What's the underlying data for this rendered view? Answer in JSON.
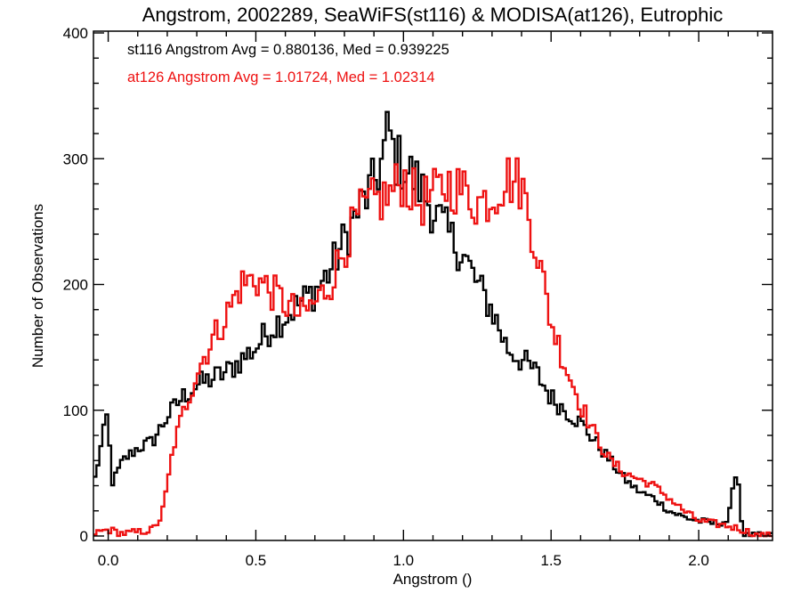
{
  "chart_data": {
    "type": "line",
    "step": true,
    "title": "Angstrom, 2002289, SeaWiFS(st116) & MODISA(at126), Eutrophic",
    "xlabel": "Angstrom ()",
    "ylabel": "Number of Observations",
    "xlim": [
      -0.05,
      2.25
    ],
    "ylim": [
      0,
      400
    ],
    "xticks": [
      0.0,
      0.5,
      1.0,
      1.5,
      2.0
    ],
    "xtick_labels": [
      "0.0",
      "0.5",
      "1.0",
      "1.5",
      "2.0"
    ],
    "yticks": [
      0,
      100,
      200,
      300,
      400
    ],
    "ytick_labels": [
      "0",
      "100",
      "200",
      "300",
      "400"
    ],
    "grid": false,
    "legend": "top-left",
    "annotations": [
      {
        "text": "st116 Angstrom Avg = 0.880136, Med = 0.939225",
        "color": "#000000"
      },
      {
        "text": "at126 Angstrom Avg = 1.01724, Med = 1.02314",
        "color": "#ee1111"
      }
    ],
    "series": [
      {
        "color": "#000000",
        "x": [
          -0.05,
          0.0,
          0.01,
          0.05,
          0.1,
          0.15,
          0.2,
          0.25,
          0.3,
          0.35,
          0.4,
          0.45,
          0.5,
          0.55,
          0.6,
          0.65,
          0.7,
          0.75,
          0.8,
          0.85,
          0.9,
          0.93,
          0.95,
          0.97,
          1.0,
          1.05,
          1.1,
          1.15,
          1.2,
          1.25,
          1.3,
          1.35,
          1.4,
          1.45,
          1.5,
          1.55,
          1.6,
          1.65,
          1.7,
          1.75,
          1.8,
          1.85,
          1.9,
          1.95,
          2.0,
          2.05,
          2.1,
          2.13,
          2.14,
          2.15
        ],
        "y": [
          40,
          100,
          40,
          60,
          70,
          75,
          95,
          110,
          120,
          125,
          130,
          140,
          150,
          165,
          175,
          185,
          195,
          210,
          235,
          260,
          280,
          300,
          325,
          300,
          295,
          280,
          260,
          240,
          225,
          200,
          180,
          150,
          140,
          130,
          110,
          100,
          90,
          75,
          60,
          45,
          35,
          30,
          20,
          15,
          12,
          10,
          12,
          58,
          25,
          0
        ]
      },
      {
        "color": "#ee1111",
        "x": [
          -0.05,
          0.0,
          0.05,
          0.1,
          0.15,
          0.18,
          0.2,
          0.22,
          0.25,
          0.3,
          0.35,
          0.4,
          0.45,
          0.5,
          0.55,
          0.6,
          0.65,
          0.7,
          0.75,
          0.8,
          0.85,
          0.9,
          0.95,
          1.0,
          1.05,
          1.1,
          1.15,
          1.2,
          1.25,
          1.3,
          1.35,
          1.4,
          1.45,
          1.5,
          1.55,
          1.6,
          1.65,
          1.7,
          1.75,
          1.8,
          1.85,
          1.9,
          1.95,
          2.0,
          2.05,
          2.1,
          2.15,
          2.2,
          2.25
        ],
        "y": [
          2,
          5,
          2,
          3,
          5,
          15,
          40,
          70,
          95,
          130,
          155,
          175,
          200,
          205,
          195,
          185,
          175,
          185,
          200,
          230,
          255,
          265,
          270,
          285,
          265,
          270,
          280,
          275,
          265,
          270,
          285,
          280,
          230,
          170,
          135,
          105,
          80,
          60,
          50,
          45,
          40,
          30,
          20,
          12,
          10,
          8,
          5,
          0,
          0
        ]
      }
    ]
  }
}
